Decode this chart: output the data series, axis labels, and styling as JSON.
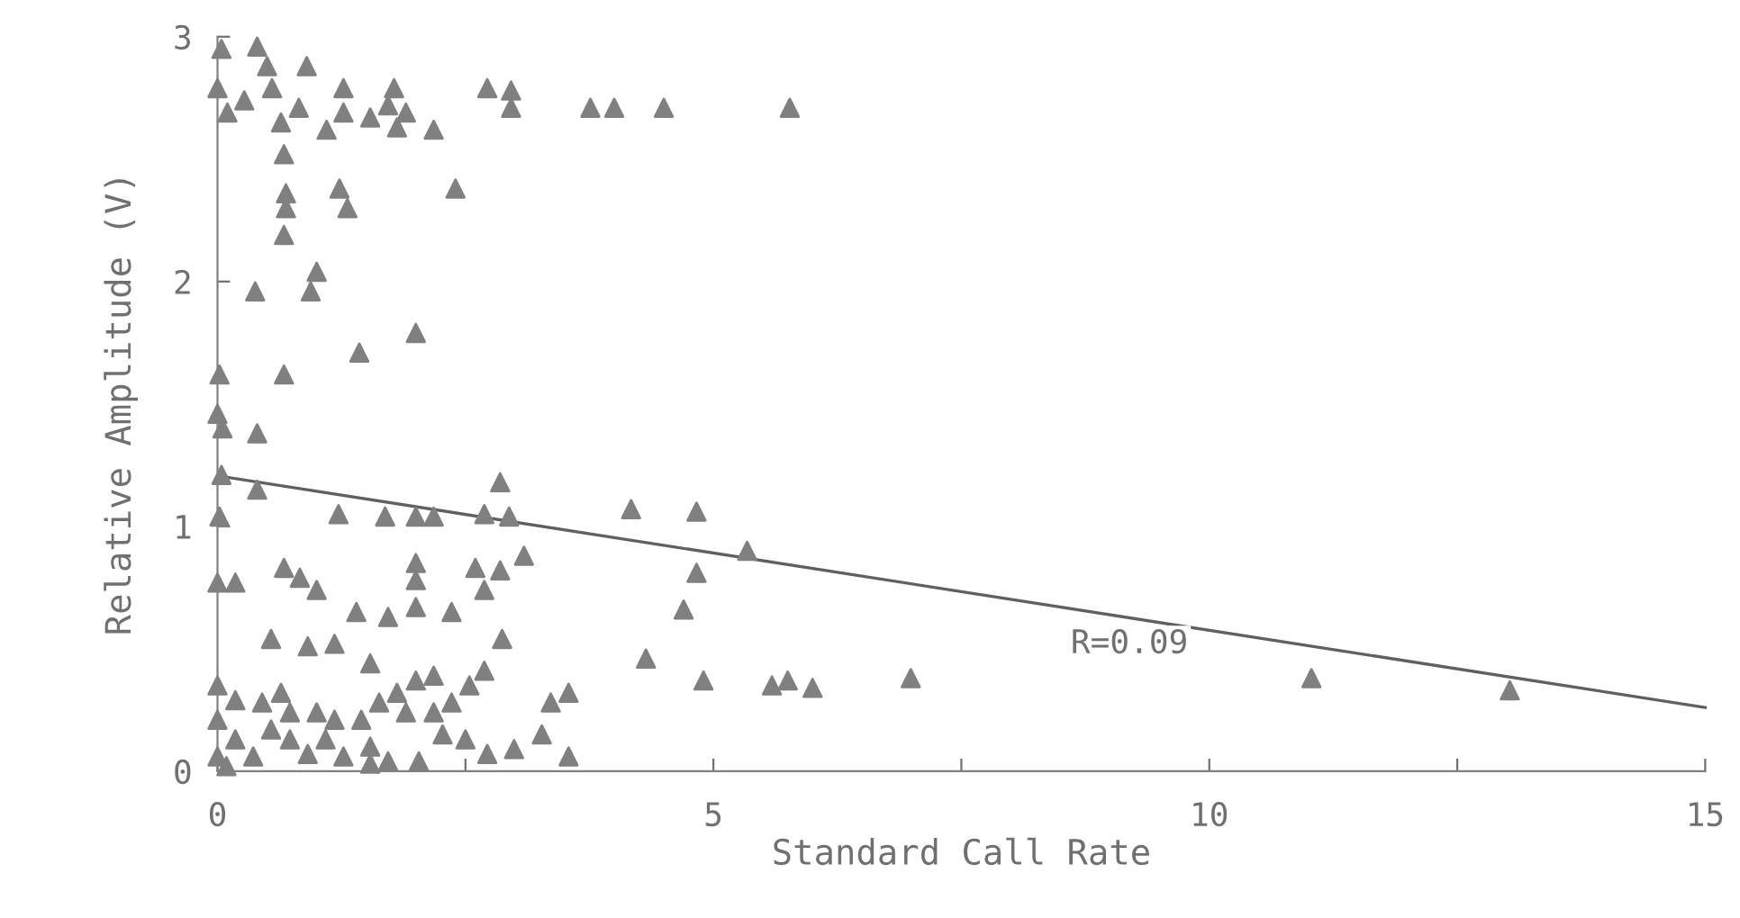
{
  "chart_data": {
    "type": "scatter",
    "xlabel": "Standard Call Rate",
    "ylabel": "Relative Amplitude (V)",
    "xlim": [
      0,
      15
    ],
    "ylim": [
      0,
      3
    ],
    "xticks": [
      0,
      {
        "value": 2.5,
        "label": null
      },
      5,
      {
        "value": 7.5,
        "label": null
      },
      10,
      {
        "value": 12.5,
        "label": null
      },
      15
    ],
    "yticks": [
      0,
      1,
      2,
      3
    ],
    "grid": false,
    "annotations": [
      "R=0.09"
    ],
    "series": [
      {
        "color": "#808080",
        "marker": "triangle",
        "x": [
          0.04,
          0.4,
          0.5,
          0.9,
          0,
          0.1,
          0.27,
          0.55,
          0.64,
          0.82,
          1.1,
          1.27,
          1.27,
          1.54,
          1.72,
          1.81,
          1.78,
          1.9,
          2.18,
          0.67,
          2.72,
          2.96,
          2.96,
          3.76,
          4.0,
          4.5,
          5.77,
          0.69,
          0.69,
          0.67,
          1.23,
          1.31,
          2.4,
          0.38,
          1.0,
          0.94,
          2.0,
          1.43,
          0.02,
          0.67,
          0,
          0.05,
          0.4,
          0.04,
          0.4,
          0.02,
          1.22,
          1.69,
          2.0,
          2.18,
          2.69,
          2.94,
          2.85,
          4.17,
          4.83,
          5.34,
          0,
          0.18,
          0.67,
          0.83,
          1.0,
          2.0,
          2.0,
          2.6,
          2.85,
          2.69,
          3.09,
          4.83,
          4.7,
          1.4,
          1.72,
          2.0,
          2.36,
          0.54,
          0.91,
          1.18,
          1.54,
          2.87,
          4.32,
          4.9,
          5.59,
          5.75,
          6.0,
          6.99,
          11.03,
          13.03,
          0,
          0.18,
          0.45,
          0.64,
          0.73,
          0,
          0.18,
          0.36,
          0.54,
          0.73,
          0.91,
          1.09,
          1.27,
          1.0,
          1.54,
          1.18,
          1.45,
          1.63,
          1.81,
          2.0,
          2.18,
          1.9,
          2.18,
          2.36,
          2.54,
          2.69,
          2.27,
          2.5,
          2.72,
          2.99,
          3.27,
          3.36,
          3.54,
          3.54,
          1.54,
          1.72,
          2.03,
          0,
          0.09
        ],
        "values": [
          2.95,
          2.96,
          2.88,
          2.88,
          2.79,
          2.69,
          2.74,
          2.79,
          2.65,
          2.71,
          2.62,
          2.69,
          2.79,
          2.67,
          2.72,
          2.63,
          2.79,
          2.69,
          2.62,
          2.52,
          2.79,
          2.78,
          2.71,
          2.71,
          2.71,
          2.71,
          2.71,
          2.36,
          2.3,
          2.19,
          2.38,
          2.3,
          2.38,
          1.96,
          2.04,
          1.96,
          1.79,
          1.71,
          1.62,
          1.62,
          1.46,
          1.4,
          1.38,
          1.21,
          1.15,
          1.04,
          1.05,
          1.04,
          1.04,
          1.04,
          1.05,
          1.04,
          1.18,
          1.07,
          1.06,
          0.9,
          0.77,
          0.77,
          0.83,
          0.79,
          0.74,
          0.85,
          0.78,
          0.83,
          0.82,
          0.74,
          0.88,
          0.81,
          0.66,
          0.65,
          0.63,
          0.67,
          0.65,
          0.54,
          0.51,
          0.52,
          0.44,
          0.54,
          0.46,
          0.37,
          0.35,
          0.37,
          0.34,
          0.38,
          0.38,
          0.33,
          0.35,
          0.29,
          0.28,
          0.32,
          0.24,
          0.21,
          0.13,
          0.06,
          0.17,
          0.13,
          0.07,
          0.13,
          0.06,
          0.24,
          0.1,
          0.21,
          0.21,
          0.28,
          0.32,
          0.37,
          0.39,
          0.24,
          0.24,
          0.28,
          0.35,
          0.41,
          0.15,
          0.13,
          0.07,
          0.09,
          0.15,
          0.28,
          0.32,
          0.06,
          0.03,
          0.04,
          0.04,
          0.06,
          0.02
        ]
      },
      {
        "type": "line",
        "color": "#606060",
        "marker": "none",
        "line_style": "solid",
        "x": [
          0.1,
          15
        ],
        "values": [
          1.2,
          0.26
        ]
      }
    ]
  }
}
